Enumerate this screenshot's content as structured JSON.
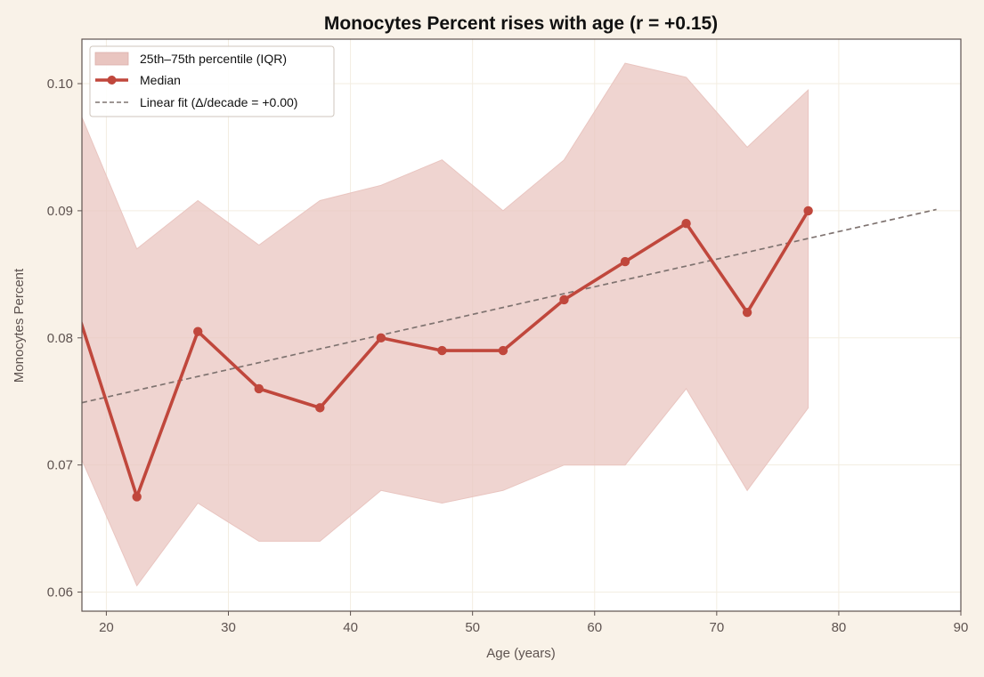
{
  "chart_data": {
    "type": "line",
    "title": "Monocytes Percent rises with age (r = +0.15)",
    "xlabel": "Age (years)",
    "ylabel": "Monocytes Percent",
    "xlim": [
      18,
      90
    ],
    "ylim": [
      0.0585,
      0.1035
    ],
    "x_ticks": [
      20,
      30,
      40,
      50,
      60,
      70,
      80,
      90
    ],
    "x_tick_labels": [
      "20",
      "30",
      "40",
      "50",
      "60",
      "70",
      "80",
      "90"
    ],
    "y_ticks": [
      0.06,
      0.07,
      0.08,
      0.09,
      0.1
    ],
    "y_tick_labels": [
      "0.06",
      "0.07",
      "0.08",
      "0.09",
      "0.10"
    ],
    "grid": true,
    "legend_position": "top-left",
    "colors": {
      "background": "#f9f2e8",
      "plot_area": "#ffffff",
      "median": "#c0473c",
      "iqr_fill": "#e9c5c0",
      "fit_line": "#7f7370",
      "grid": "#f3ede1",
      "axes": "#5e5350",
      "tick_text": "#5e5350"
    },
    "legend": [
      {
        "key": "iqr",
        "label": "25th–75th percentile (IQR)"
      },
      {
        "key": "median",
        "label": "Median"
      },
      {
        "key": "fit",
        "label": "Linear fit (Δ/decade = +0.00)"
      }
    ],
    "iqr_band": {
      "x": [
        17.5,
        22.5,
        27.5,
        32.5,
        37.5,
        42.5,
        47.5,
        52.5,
        57.5,
        62.5,
        67.5,
        72.5,
        77.5
      ],
      "lower": [
        0.0715,
        0.0605,
        0.067,
        0.064,
        0.064,
        0.068,
        0.067,
        0.068,
        0.07,
        0.07,
        0.076,
        0.068,
        0.0745
      ],
      "upper": [
        0.0985,
        0.087,
        0.0908,
        0.0873,
        0.0908,
        0.092,
        0.094,
        0.09,
        0.094,
        0.1016,
        0.1005,
        0.095,
        0.0995
      ]
    },
    "series": [
      {
        "name": "Median",
        "x": [
          17.5,
          22.5,
          27.5,
          32.5,
          37.5,
          42.5,
          47.5,
          52.5,
          57.5,
          62.5,
          67.5,
          72.5,
          77.5
        ],
        "values": [
          0.0825,
          0.0675,
          0.0805,
          0.076,
          0.0745,
          0.08,
          0.079,
          0.079,
          0.083,
          0.086,
          0.089,
          0.082,
          0.09
        ]
      }
    ],
    "linear_fit": {
      "name": "Linear fit (Δ/decade = +0.00)",
      "x": [
        18,
        88
      ],
      "values": [
        0.0749,
        0.0901
      ]
    }
  }
}
